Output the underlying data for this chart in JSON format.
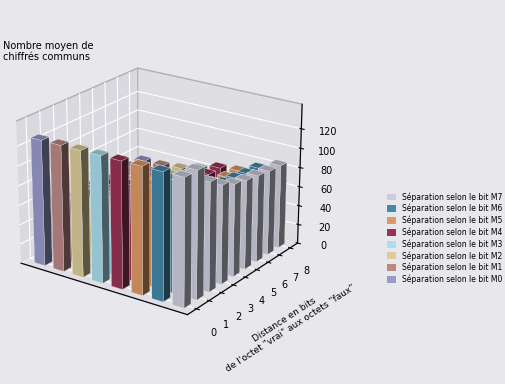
{
  "title_ylabel": "Nombre moyen de\nchiffrés communs",
  "xlabel": "Distance en bits\nde l'octet \"vrai\" aux octets \"faux\"",
  "series_labels": [
    "Séparation selon le bit M0",
    "Séparation selon le bit M1",
    "Séparation selon le bit M2",
    "Séparation selon le bit M3",
    "Séparation selon le bit M4",
    "Séparation selon le bit M5",
    "Séparation selon le bit M6",
    "Séparation selon le bit M7"
  ],
  "colors": [
    "#9999CC",
    "#BB8888",
    "#DDCC99",
    "#AADDEE",
    "#993355",
    "#DD9966",
    "#4488AA",
    "#CCCCDD"
  ],
  "data": [
    [
      128,
      60,
      56,
      55,
      55,
      55,
      55,
      55,
      55
    ],
    [
      128,
      62,
      57,
      56,
      56,
      55,
      55,
      55,
      55
    ],
    [
      128,
      67,
      61,
      58,
      57,
      57,
      57,
      57,
      57
    ],
    [
      128,
      80,
      68,
      63,
      62,
      62,
      62,
      62,
      62
    ],
    [
      128,
      97,
      81,
      74,
      70,
      68,
      68,
      68,
      68
    ],
    [
      128,
      102,
      87,
      79,
      76,
      73,
      71,
      70,
      70
    ],
    [
      128,
      113,
      97,
      90,
      86,
      83,
      81,
      79,
      78
    ],
    [
      128,
      128,
      110,
      100,
      94,
      91,
      89,
      87,
      86
    ]
  ],
  "x_ticks": [
    0,
    1,
    2,
    3,
    4,
    5,
    6,
    7,
    8
  ],
  "yticks": [
    0,
    20,
    40,
    60,
    80,
    100,
    120
  ],
  "ylim": [
    0,
    145
  ],
  "elev": 22,
  "azim": -55,
  "bar_width": 0.55,
  "bar_depth": 0.55,
  "pane_color_xy": "#CBCBD4",
  "pane_color_yz": "#D5D5DC",
  "pane_color_xz": "#D8D8E0",
  "fig_facecolor": "#E8E8EC",
  "figsize": [
    5.06,
    3.84
  ],
  "dpi": 100
}
